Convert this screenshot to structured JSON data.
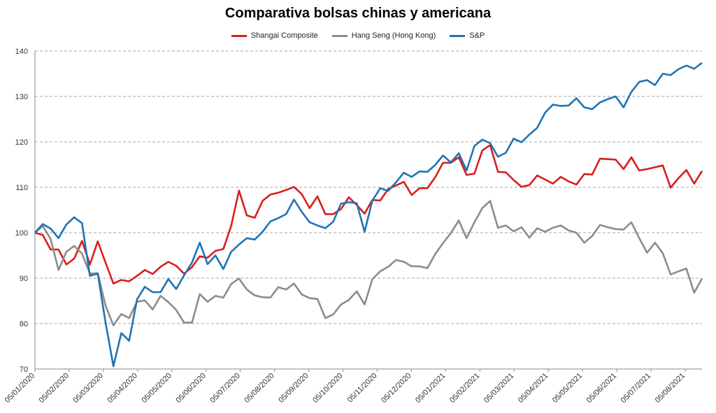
{
  "colors": {
    "shanghai": "#d91e1e",
    "hangseng": "#8c8c8c",
    "sp": "#1f74b5",
    "grid": "#a6a6a6"
  },
  "chart_data": {
    "type": "line",
    "title": "Comparativa bolsas chinas y americana",
    "xlabel": "",
    "ylabel": "",
    "ylim": [
      70,
      140
    ],
    "yticks": [
      70,
      80,
      90,
      100,
      110,
      120,
      130,
      140
    ],
    "grid": "horizontal dashed",
    "legend": "top-center",
    "x_tick_labels": [
      "05/01/2020",
      "05/02/2020",
      "05/03/2020",
      "05/04/2020",
      "05/05/2020",
      "05/06/2020",
      "05/07/2020",
      "05/08/2020",
      "05/09/2020",
      "05/10/2020",
      "05/11/2020",
      "05/12/2020",
      "05/01/2021",
      "05/02/2021",
      "05/03/2021",
      "05/04/2021",
      "05/05/2021",
      "05/06/2021",
      "05/07/2021",
      "05/08/2021"
    ],
    "x_points_note_weekly": true,
    "series": [
      {
        "name": "Shangai Composite",
        "values": [
          100,
          99.5,
          96.3,
          96.3,
          93,
          94.3,
          98.2,
          93,
          98.1,
          93.4,
          88.8,
          89.6,
          89.3,
          90.5,
          91.8,
          90.9,
          92.5,
          93.6,
          92.7,
          91,
          92.4,
          94.8,
          94.5,
          96,
          96.4,
          101.5,
          109.3,
          103.8,
          103.3,
          107,
          108.4,
          108.8,
          109.4,
          110.1,
          108.5,
          105.4,
          108,
          104.1,
          104.1,
          105.2,
          107.8,
          106.1,
          104.2,
          107.2,
          107.1,
          109.6,
          110.4,
          111.2,
          108.3,
          109.8,
          109.8,
          112.2,
          115.4,
          115.4,
          116.6,
          112.7,
          113,
          118.1,
          119.3,
          113.4,
          113.3,
          111.6,
          110.1,
          110.5,
          112.6,
          111.7,
          110.8,
          112.3,
          111.3,
          110.6,
          112.9,
          112.8,
          116.3,
          116.2,
          116.1,
          114,
          116.6,
          113.7,
          114,
          114.4,
          114.8,
          109.9,
          112,
          113.8,
          110.8,
          113.6
        ]
      },
      {
        "name": "Hang Seng (Hong Kong)",
        "values": [
          100,
          101.5,
          98.6,
          91.8,
          95.8,
          97.1,
          95.4,
          91,
          91.1,
          83.9,
          79.6,
          82.1,
          81.2,
          84.8,
          85.1,
          83.1,
          86.1,
          84.7,
          83,
          80.2,
          80.2,
          86.5,
          84.8,
          86.1,
          85.7,
          88.7,
          89.9,
          87.5,
          86.2,
          85.8,
          85.7,
          88,
          87.5,
          88.8,
          86.4,
          85.6,
          85.4,
          81.2,
          82,
          84.2,
          85.2,
          87.1,
          84.2,
          89.8,
          91.5,
          92.5,
          94,
          93.6,
          92.6,
          92.6,
          92.2,
          95.3,
          97.7,
          99.9,
          102.7,
          98.8,
          102.3,
          105.4,
          107,
          101.1,
          101.6,
          100.3,
          101.2,
          98.9,
          101,
          100.2,
          101.1,
          101.6,
          100.5,
          100,
          97.8,
          99.3,
          101.7,
          101.2,
          100.8,
          100.7,
          102.3,
          98.8,
          95.6,
          97.8,
          95.5,
          90.8,
          91.5,
          92.1,
          86.8,
          89.9
        ]
      },
      {
        "name": "S&P",
        "values": [
          100,
          101.9,
          100.9,
          98.8,
          101.8,
          103.4,
          102.1,
          90.5,
          91,
          80.2,
          70.6,
          77.9,
          76.2,
          85.3,
          88.1,
          86.9,
          86.9,
          89.8,
          87.6,
          90.6,
          93.4,
          97.8,
          93.1,
          95,
          92,
          95.8,
          97.4,
          98.8,
          98.5,
          100.2,
          102.5,
          103.2,
          104.1,
          107.3,
          104.6,
          102.3,
          101.6,
          101,
          102.4,
          106.4,
          106.7,
          106.5,
          100.2,
          107.1,
          109.8,
          109.2,
          111.1,
          113.2,
          112.3,
          113.5,
          113.4,
          114.9,
          117,
          115.5,
          117.5,
          113.7,
          119.1,
          120.5,
          119.7,
          116.7,
          117.6,
          120.7,
          119.9,
          121.6,
          123.1,
          126.4,
          128.2,
          127.9,
          128,
          129.6,
          127.6,
          127.2,
          128.7,
          129.4,
          130,
          127.6,
          131,
          133.2,
          133.6,
          132.5,
          135,
          134.7,
          136,
          136.8,
          136.1,
          137.4
        ]
      }
    ]
  }
}
